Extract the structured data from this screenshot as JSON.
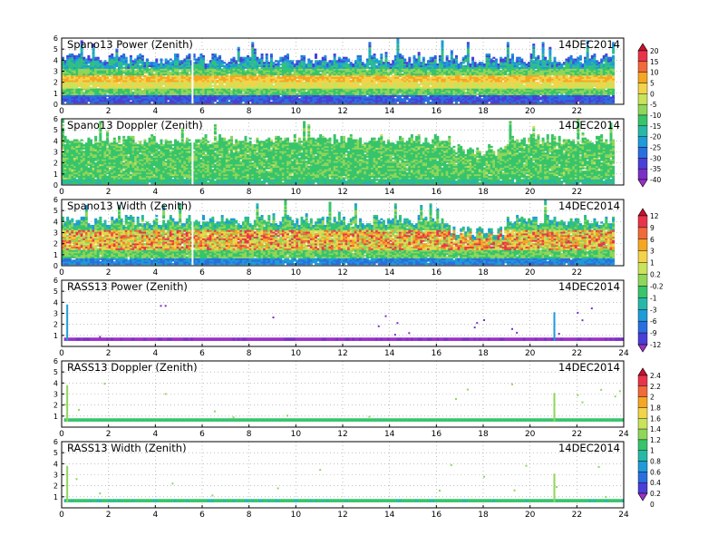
{
  "figure": {
    "colors": {
      "frame": "#000000",
      "grid": "#9a9a9a",
      "background": "#ffffff",
      "missing": "#ffffff"
    }
  },
  "chart_data": [
    {
      "type": "heatmap",
      "title": "Spano13 Power (Zenith)",
      "date": "14DEC2014",
      "xlim": [
        0,
        24
      ],
      "ylim": [
        0,
        6
      ],
      "x_ticks": [
        "0",
        "2",
        "4",
        "6",
        "8",
        "10",
        "12",
        "14",
        "16",
        "18",
        "20",
        "22"
      ],
      "y_ticks": [
        "0",
        "1",
        "2",
        "3",
        "4",
        "5",
        "6"
      ],
      "data_coverage_hours": [
        0,
        23.6
      ],
      "description_rows": [
        {
          "height_range": [
            0.3,
            0.8
          ],
          "dominant_level": -35
        },
        {
          "height_range": [
            0.8,
            1.3
          ],
          "dominant_level": -15
        },
        {
          "height_range": [
            1.3,
            2.0
          ],
          "dominant_level": -5
        },
        {
          "height_range": [
            2.0,
            2.6
          ],
          "dominant_level": 5
        },
        {
          "height_range": [
            2.6,
            3.2
          ],
          "dominant_level": -10
        },
        {
          "height_range": [
            3.2,
            4.0
          ],
          "dominant_level": -20
        },
        {
          "height_range": [
            4.0,
            4.5
          ],
          "dominant_level": -25
        }
      ],
      "grid": true
    },
    {
      "type": "heatmap",
      "title": "Spano13 Doppler (Zenith)",
      "date": "14DEC2014",
      "xlim": [
        0,
        24
      ],
      "ylim": [
        0,
        6
      ],
      "x_ticks": [
        "0",
        "2",
        "4",
        "6",
        "8",
        "10",
        "12",
        "14",
        "16",
        "18",
        "20",
        "22"
      ],
      "y_ticks": [
        "0",
        "1",
        "2",
        "3",
        "4",
        "5",
        "6"
      ],
      "data_coverage_hours": [
        0,
        23.6
      ],
      "grid": true
    },
    {
      "type": "heatmap",
      "title": "Spano13 Width (Zenith)",
      "date": "14DEC2014",
      "xlim": [
        0,
        24
      ],
      "ylim": [
        0,
        6
      ],
      "x_ticks": [
        "0",
        "2",
        "4",
        "6",
        "8",
        "10",
        "12",
        "14",
        "16",
        "18",
        "20",
        "22"
      ],
      "y_ticks": [
        "0",
        "1",
        "2",
        "3",
        "4",
        "5",
        "6"
      ],
      "data_coverage_hours": [
        0,
        23.6
      ],
      "grid": true
    },
    {
      "type": "heatmap",
      "title": "RASS13 Power (Zenith)",
      "date": "14DEC2014",
      "xlim": [
        0,
        24
      ],
      "ylim": [
        0,
        6
      ],
      "x_ticks": [
        "0",
        "2",
        "4",
        "6",
        "8",
        "10",
        "12",
        "14",
        "16",
        "18",
        "20",
        "22",
        "24"
      ],
      "y_ticks": [
        "1",
        "2",
        "3",
        "4",
        "5",
        "6"
      ],
      "data_band_height": [
        0.5,
        0.8
      ],
      "spike_hours": [
        0.2,
        21.0
      ],
      "grid": true
    },
    {
      "type": "heatmap",
      "title": "RASS13 Doppler (Zenith)",
      "date": "14DEC2014",
      "xlim": [
        0,
        24
      ],
      "ylim": [
        0,
        6
      ],
      "x_ticks": [
        "0",
        "2",
        "4",
        "6",
        "8",
        "10",
        "12",
        "14",
        "16",
        "18",
        "20",
        "22",
        "24"
      ],
      "y_ticks": [
        "1",
        "2",
        "3",
        "4",
        "5",
        "6"
      ],
      "data_band_height": [
        0.5,
        0.8
      ],
      "spike_hours": [
        0.2,
        21.0
      ],
      "grid": true
    },
    {
      "type": "heatmap",
      "title": "RASS13 Width (Zenith)",
      "date": "14DEC2014",
      "xlim": [
        0,
        24
      ],
      "ylim": [
        0,
        6
      ],
      "x_ticks": [
        "0",
        "2",
        "4",
        "6",
        "8",
        "10",
        "12",
        "14",
        "16",
        "18",
        "20",
        "22",
        "24"
      ],
      "y_ticks": [
        "1",
        "2",
        "3",
        "4",
        "5",
        "6"
      ],
      "data_band_height": [
        0.5,
        0.8
      ],
      "spike_hours": [
        0.2,
        21.0
      ],
      "grid": true
    }
  ],
  "colorbars": [
    {
      "for": "Spano13 Power and Doppler",
      "labels": [
        "20",
        "15",
        "10",
        "5",
        "0",
        "-5",
        "-10",
        "-15",
        "-20",
        "-25",
        "-30",
        "-35",
        "-40"
      ],
      "colors": [
        "#c8102e",
        "#e8344a",
        "#f06a3a",
        "#f5a623",
        "#f3d34a",
        "#c9e35b",
        "#8fd65a",
        "#37c46b",
        "#27b8a8",
        "#1e9bd8",
        "#2a6fe0",
        "#4a3fd6",
        "#7a2fc6",
        "#9b30c8"
      ]
    },
    {
      "for": "Spano13 Width",
      "labels": [
        "12",
        "9",
        "6",
        "3",
        "1",
        "0.2",
        "-0.2",
        "-1",
        "-3",
        "-6",
        "-9",
        "-12"
      ],
      "colors": [
        "#c8102e",
        "#e8344a",
        "#f06a3a",
        "#f5a623",
        "#f3d34a",
        "#c9e35b",
        "#8fd65a",
        "#37c46b",
        "#27b8a8",
        "#1e9bd8",
        "#2a6fe0",
        "#4a3fd6",
        "#9b30c8"
      ]
    },
    {
      "for": "RASS13 Doppler and Width",
      "labels": [
        "2.4",
        "2.2",
        "2",
        "1.8",
        "1.6",
        "1.4",
        "1.2",
        "1",
        "0.8",
        "0.6",
        "0.4",
        "0.2",
        "0"
      ],
      "colors": [
        "#c8102e",
        "#e8344a",
        "#f06a3a",
        "#f5a623",
        "#f3d34a",
        "#c9e35b",
        "#8fd65a",
        "#37c46b",
        "#27b8a8",
        "#1e9bd8",
        "#2a6fe0",
        "#4a3fd6",
        "#9b30c8"
      ]
    }
  ]
}
